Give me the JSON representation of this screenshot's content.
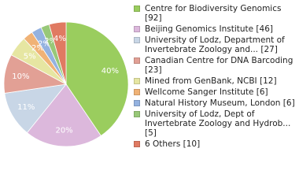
{
  "chart_data": {
    "type": "pie",
    "categories": [
      "Centre for Biodiversity Genomics [92]",
      "Beijing Genomics Institute [46]",
      "University of Lodz, Department of Invertebrate Zoology and... [27]",
      "Canadian Centre for DNA Barcoding [23]",
      "Mined from GenBank, NCBI [12]",
      "Wellcome Sanger Institute [6]",
      "Natural History Museum, London [6]",
      "University of Lodz, Dept of Invertebrate Zoology and Hydrob... [5]",
      "6 Others [10]"
    ],
    "values": [
      92,
      46,
      27,
      23,
      12,
      6,
      6,
      5,
      10
    ],
    "value_labels": [
      "40%",
      "20%",
      "11%",
      "10%",
      "5%",
      "2%",
      "2%",
      "2%",
      "4%"
    ],
    "colors": [
      "#9acd5e",
      "#dcb8dc",
      "#c8d6e6",
      "#e2a095",
      "#e6e6a2",
      "#f0b276",
      "#94b2e0",
      "#98c878",
      "#e07a62"
    ]
  }
}
